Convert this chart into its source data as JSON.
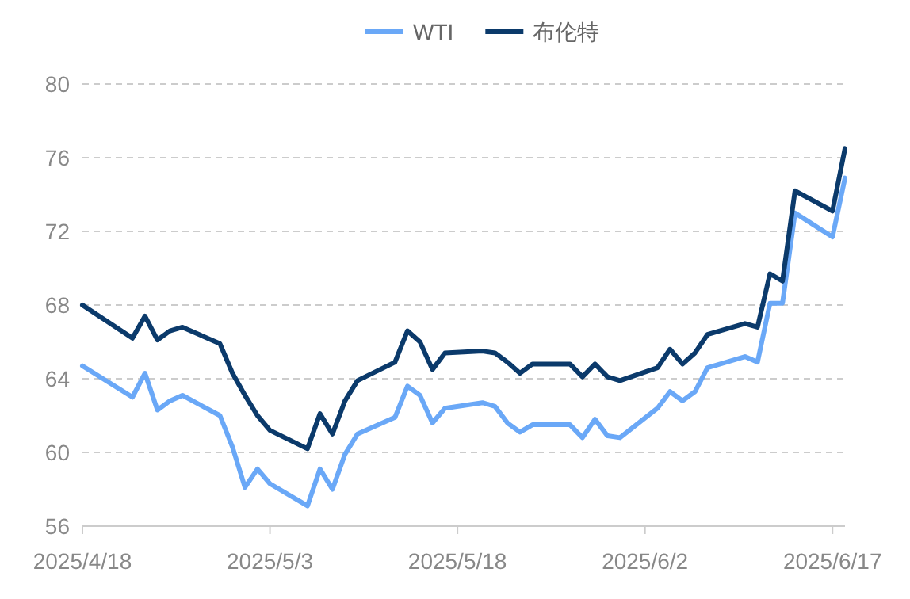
{
  "chart_data": {
    "type": "line",
    "x": [
      "2025-04-18",
      "2025-04-22",
      "2025-04-23",
      "2025-04-24",
      "2025-04-25",
      "2025-04-26",
      "2025-04-29",
      "2025-04-30",
      "2025-05-01",
      "2025-05-02",
      "2025-05-03",
      "2025-05-06",
      "2025-05-07",
      "2025-05-08",
      "2025-05-09",
      "2025-05-10",
      "2025-05-13",
      "2025-05-14",
      "2025-05-15",
      "2025-05-16",
      "2025-05-17",
      "2025-05-20",
      "2025-05-21",
      "2025-05-22",
      "2025-05-23",
      "2025-05-24",
      "2025-05-27",
      "2025-05-28",
      "2025-05-29",
      "2025-05-30",
      "2025-05-31",
      "2025-06-03",
      "2025-06-04",
      "2025-06-05",
      "2025-06-06",
      "2025-06-07",
      "2025-06-10",
      "2025-06-11",
      "2025-06-12",
      "2025-06-13",
      "2025-06-14",
      "2025-06-17",
      "2025-06-18"
    ],
    "series": [
      {
        "name": "WTI",
        "color": "#6aa8f7",
        "values": [
          64.7,
          63.0,
          64.3,
          62.3,
          62.8,
          63.1,
          62.0,
          60.3,
          58.1,
          59.1,
          58.3,
          57.1,
          59.1,
          58.0,
          59.9,
          61.0,
          61.9,
          63.6,
          63.1,
          61.6,
          62.4,
          62.7,
          62.5,
          61.6,
          61.1,
          61.5,
          61.5,
          60.8,
          61.8,
          60.9,
          60.8,
          62.4,
          63.3,
          62.8,
          63.3,
          64.6,
          65.2,
          64.9,
          68.1,
          68.1,
          73.0,
          71.7,
          74.9
        ]
      },
      {
        "name": "布伦特",
        "color": "#0b3a6b",
        "values": [
          68.0,
          66.2,
          67.4,
          66.1,
          66.6,
          66.8,
          65.9,
          64.3,
          63.1,
          62.0,
          61.2,
          60.2,
          62.1,
          61.0,
          62.8,
          63.9,
          64.9,
          66.6,
          66.0,
          64.5,
          65.4,
          65.5,
          65.4,
          64.9,
          64.3,
          64.8,
          64.8,
          64.1,
          64.8,
          64.1,
          63.9,
          64.6,
          65.6,
          64.8,
          65.4,
          66.4,
          67.0,
          66.8,
          69.7,
          69.3,
          74.2,
          73.1,
          76.5
        ]
      }
    ],
    "xlim": [
      "2025-04-18",
      "2025-06-18"
    ],
    "xticks": [
      {
        "value": "2025-04-18",
        "label": "2025/4/18"
      },
      {
        "value": "2025-05-03",
        "label": "2025/5/3"
      },
      {
        "value": "2025-05-18",
        "label": "2025/5/18"
      },
      {
        "value": "2025-06-02",
        "label": "2025/6/2"
      },
      {
        "value": "2025-06-17",
        "label": "2025/6/17"
      }
    ],
    "ylim": [
      56,
      80
    ],
    "yticks": [
      56,
      60,
      64,
      68,
      72,
      76,
      80
    ],
    "grid": "y",
    "legend": "top",
    "marker": "none",
    "line_style": "solid"
  }
}
